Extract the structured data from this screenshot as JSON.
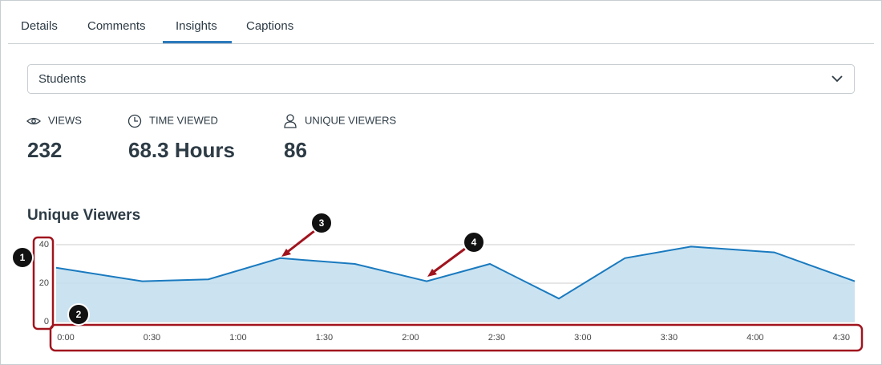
{
  "tabs": [
    "Details",
    "Comments",
    "Insights",
    "Captions"
  ],
  "filter": "Students",
  "stats": [
    {
      "label": "VIEWS",
      "value": "232"
    },
    {
      "label": "TIME VIEWED",
      "value": "68.3 Hours"
    },
    {
      "label": "UNIQUE VIEWERS",
      "value": "86"
    }
  ],
  "annotations": [
    "1",
    "2",
    "3",
    "4"
  ],
  "chart_data": {
    "type": "area",
    "title": "Unique Viewers",
    "x": [
      0,
      30,
      53,
      78,
      104,
      129,
      151,
      175,
      198,
      221,
      250,
      278
    ],
    "values": [
      28,
      21,
      22,
      33,
      30,
      21,
      30,
      12,
      33,
      39,
      36,
      21
    ],
    "color": "#1a7abf",
    "fill": "#c5e0f0",
    "xlim": [
      0,
      278
    ],
    "xticks": [
      {
        "value": 0,
        "label": "0:00"
      },
      {
        "value": 30,
        "label": "0:30"
      },
      {
        "value": 60,
        "label": "1:00"
      },
      {
        "value": 90,
        "label": "1:30"
      },
      {
        "value": 120,
        "label": "2:00"
      },
      {
        "value": 150,
        "label": "2:30"
      },
      {
        "value": 180,
        "label": "3:00"
      },
      {
        "value": 210,
        "label": "3:30"
      },
      {
        "value": 240,
        "label": "4:00"
      },
      {
        "value": 270,
        "label": "4:30"
      }
    ],
    "ylim": [
      0,
      40
    ],
    "yticks": [
      0,
      20,
      40
    ],
    "grid": true
  }
}
